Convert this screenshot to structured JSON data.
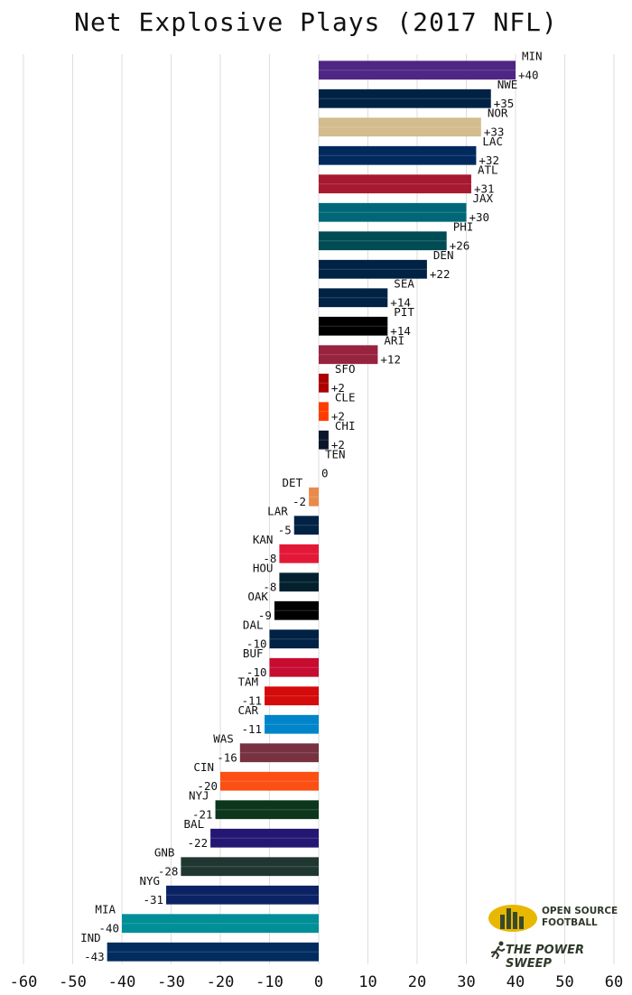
{
  "chart_data": {
    "type": "bar",
    "orientation": "horizontal",
    "title": "Net Explosive Plays (2017 NFL)",
    "xlabel": "",
    "ylabel": "",
    "xlim": [
      -60,
      60
    ],
    "xticks": [
      "-60",
      "-50",
      "-40",
      "-30",
      "-20",
      "-10",
      "0",
      "10",
      "20",
      "30",
      "40",
      "50",
      "60"
    ],
    "grid": "vertical",
    "bars": [
      {
        "team": "MIN",
        "value": 40,
        "label": "+40",
        "color": "#4f2683"
      },
      {
        "team": "NWE",
        "value": 35,
        "label": "+35",
        "color": "#002244"
      },
      {
        "team": "NOR",
        "value": 33,
        "label": "+33",
        "color": "#d3bc8d"
      },
      {
        "team": "LAC",
        "value": 32,
        "label": "+32",
        "color": "#002a5e"
      },
      {
        "team": "ATL",
        "value": 31,
        "label": "+31",
        "color": "#a71930"
      },
      {
        "team": "JAX",
        "value": 30,
        "label": "+30",
        "color": "#006778"
      },
      {
        "team": "PHI",
        "value": 26,
        "label": "+26",
        "color": "#004c54"
      },
      {
        "team": "DEN",
        "value": 22,
        "label": "+22",
        "color": "#002244"
      },
      {
        "team": "SEA",
        "value": 14,
        "label": "+14",
        "color": "#002244"
      },
      {
        "team": "PIT",
        "value": 14,
        "label": "+14",
        "color": "#000000"
      },
      {
        "team": "ARI",
        "value": 12,
        "label": "+12",
        "color": "#97233f"
      },
      {
        "team": "SFO",
        "value": 2,
        "label": "+2",
        "color": "#aa0000"
      },
      {
        "team": "CLE",
        "value": 2,
        "label": "+2",
        "color": "#ff3c00"
      },
      {
        "team": "CHI",
        "value": 2,
        "label": "+2",
        "color": "#0b162a"
      },
      {
        "team": "TEN",
        "value": 0,
        "label": "0",
        "color": "#4b92db"
      },
      {
        "team": "DET",
        "value": -2,
        "label": "-2",
        "color": "#e98a4b"
      },
      {
        "team": "LAR",
        "value": -5,
        "label": "-5",
        "color": "#002244"
      },
      {
        "team": "KAN",
        "value": -8,
        "label": "-8",
        "color": "#e31837"
      },
      {
        "team": "HOU",
        "value": -8,
        "label": "-8",
        "color": "#03202f"
      },
      {
        "team": "OAK",
        "value": -9,
        "label": "-9",
        "color": "#000000"
      },
      {
        "team": "DAL",
        "value": -10,
        "label": "-10",
        "color": "#002244"
      },
      {
        "team": "BUF",
        "value": -10,
        "label": "-10",
        "color": "#c60c30"
      },
      {
        "team": "TAM",
        "value": -11,
        "label": "-11",
        "color": "#d50a0a"
      },
      {
        "team": "CAR",
        "value": -11,
        "label": "-11",
        "color": "#0085ca"
      },
      {
        "team": "WAS",
        "value": -16,
        "label": "-16",
        "color": "#773141"
      },
      {
        "team": "CIN",
        "value": -20,
        "label": "-20",
        "color": "#fb4f14"
      },
      {
        "team": "NYJ",
        "value": -21,
        "label": "-21",
        "color": "#0c371d"
      },
      {
        "team": "BAL",
        "value": -22,
        "label": "-22",
        "color": "#241773"
      },
      {
        "team": "GNB",
        "value": -28,
        "label": "-28",
        "color": "#203731"
      },
      {
        "team": "NYG",
        "value": -31,
        "label": "-31",
        "color": "#0b2265"
      },
      {
        "team": "MIA",
        "value": -40,
        "label": "-40",
        "color": "#008e97"
      },
      {
        "team": "IND",
        "value": -43,
        "label": "-43",
        "color": "#002c5f"
      }
    ]
  },
  "logo": {
    "line1": "OPEN SOURCE",
    "line2": "FOOTBALL",
    "line3": "THE POWER SWEEP",
    "primary_color": "#e8b800",
    "text_color": "#2f3a2a"
  }
}
